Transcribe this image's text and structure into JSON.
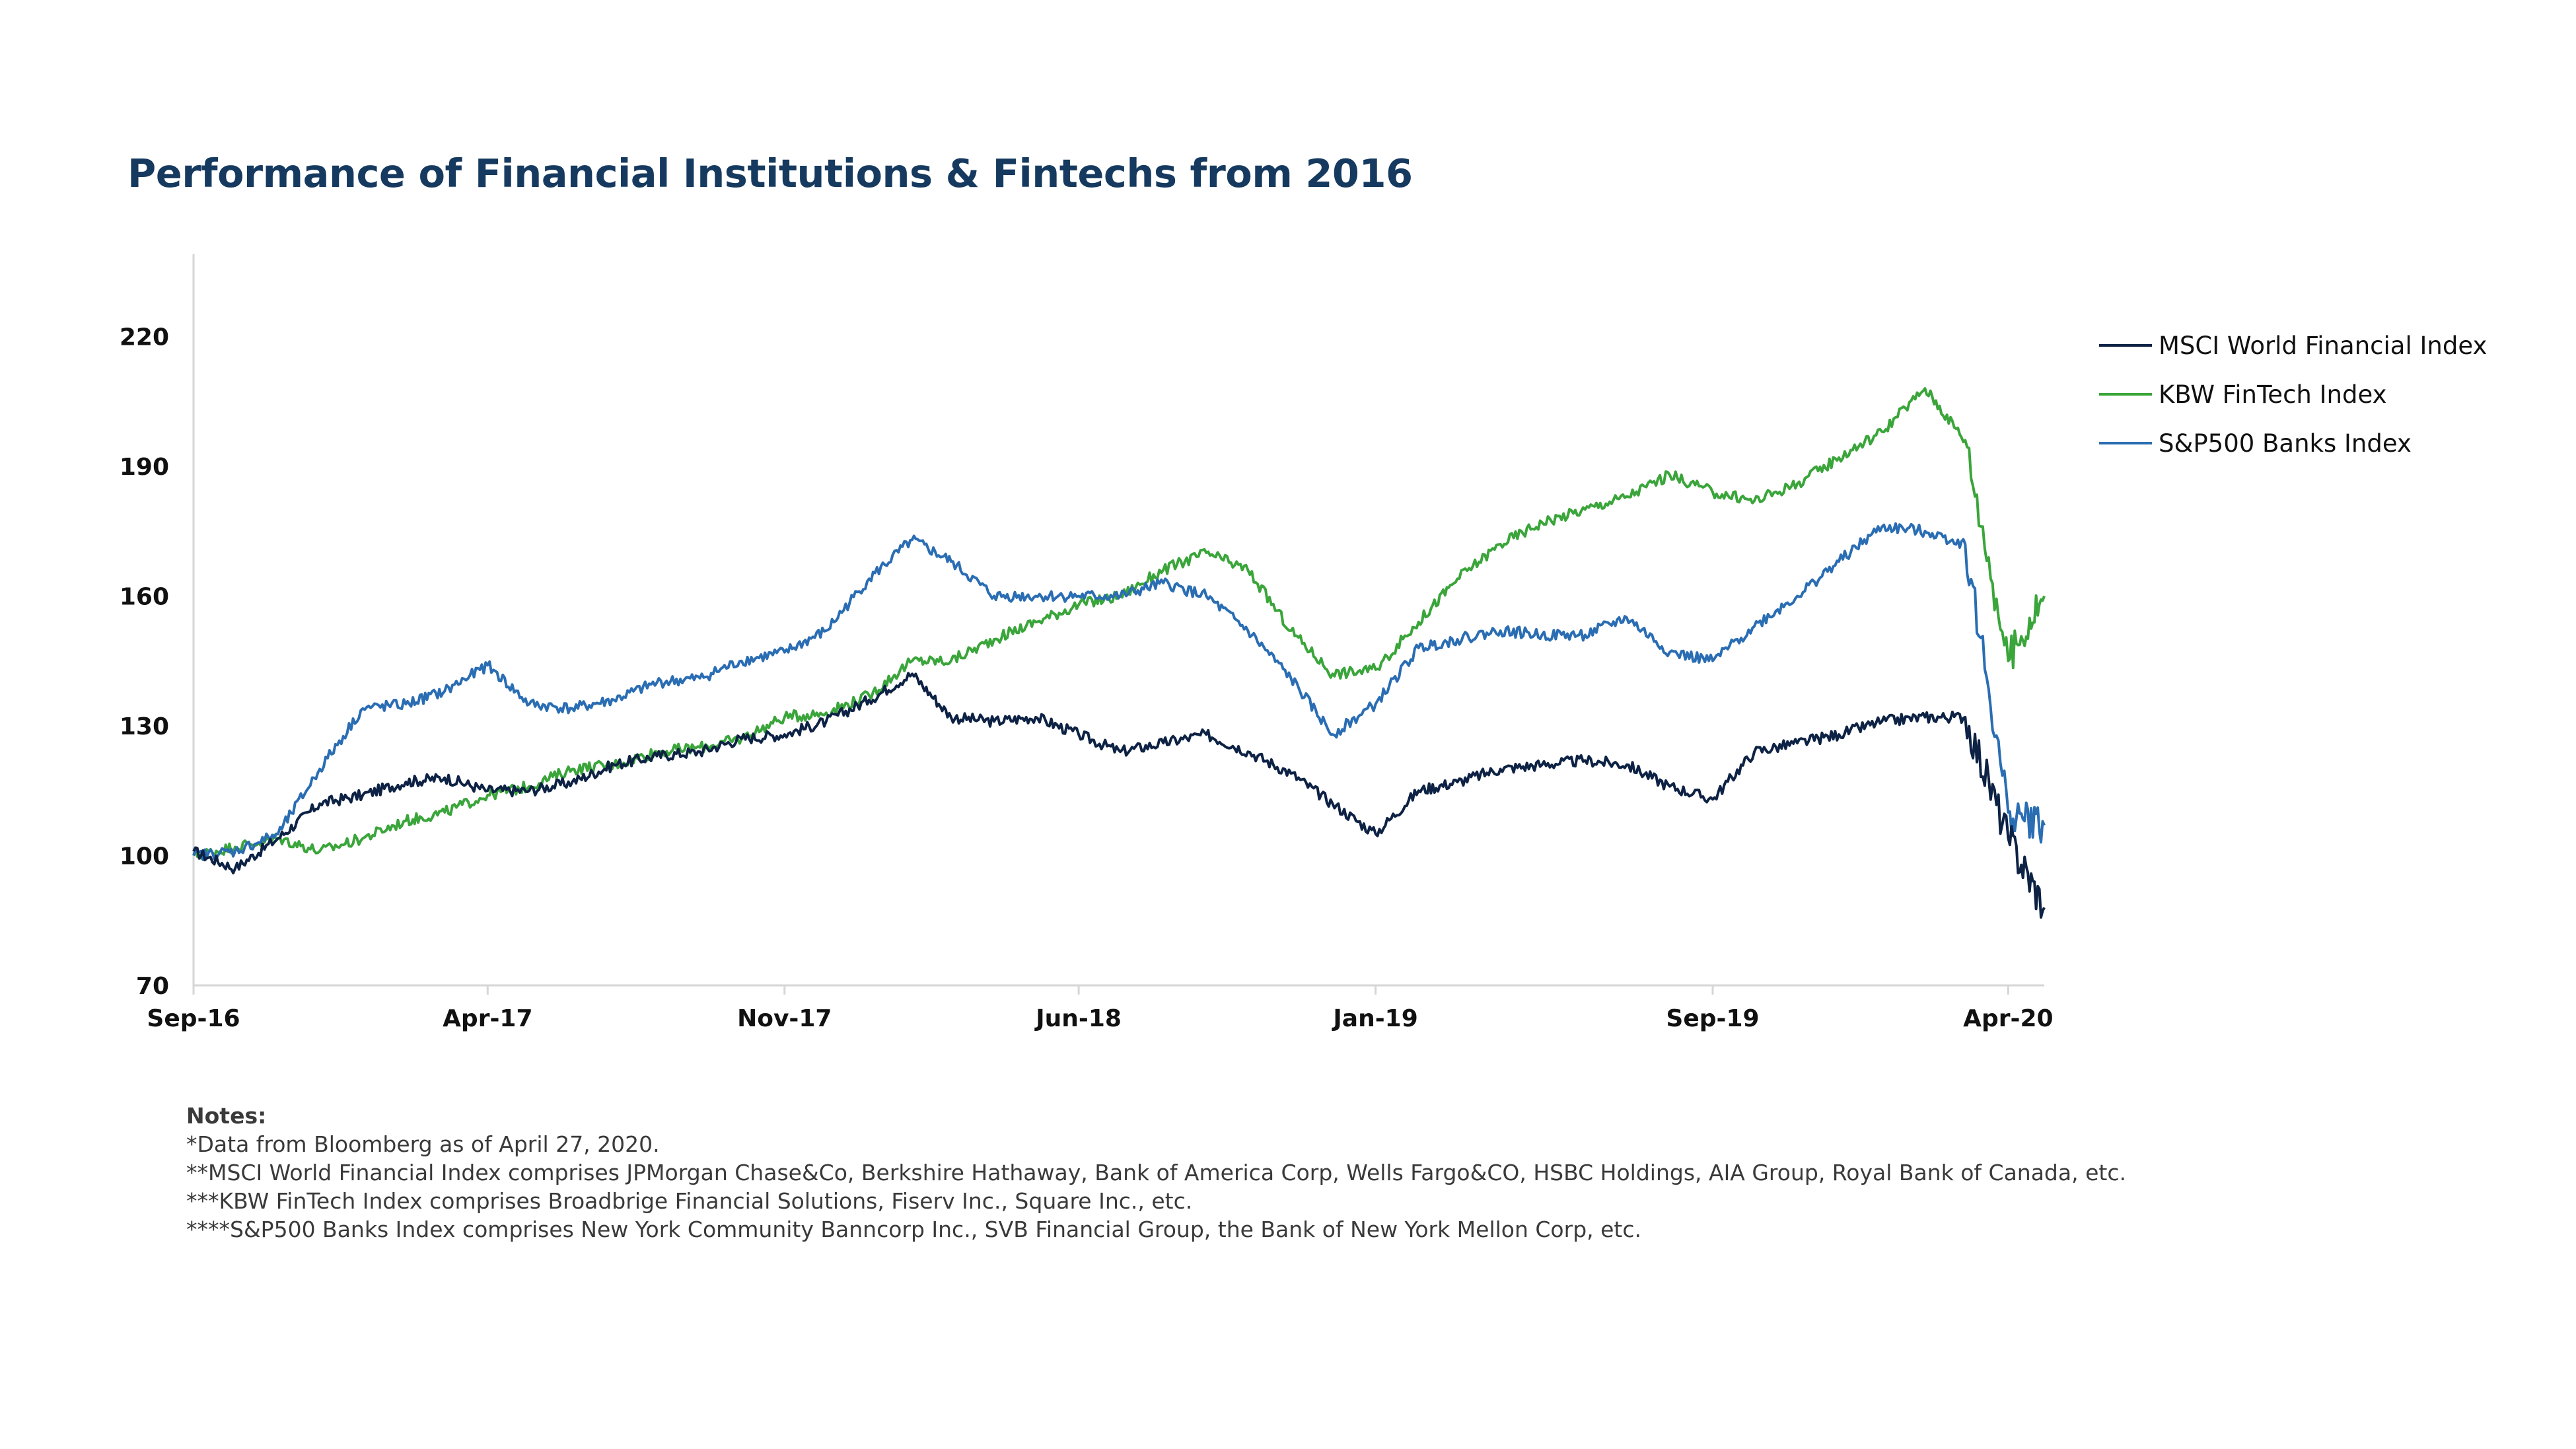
{
  "chart_data": {
    "type": "line",
    "title": "Performance of Financial Institutions & Fintechs from 2016",
    "x_tick_labels": [
      "Sep-16",
      "Apr-17",
      "Nov-17",
      "Jun-18",
      "Jan-19",
      "Sep-19",
      "Apr-20"
    ],
    "x_ticks": [
      "2016-09-01",
      "2017-04-01",
      "2017-11-01",
      "2018-06-01",
      "2019-01-01",
      "2019-09-01",
      "2020-04-01"
    ],
    "xlim": [
      "2016-09-01",
      "2020-04-27"
    ],
    "y_ticks": [
      70,
      100,
      130,
      160,
      190,
      220
    ],
    "ylim": [
      70,
      239
    ],
    "grid": false,
    "legend_position": "right",
    "x": [
      "2016-09-01",
      "2016-10-01",
      "2016-11-01",
      "2016-12-01",
      "2017-01-01",
      "2017-02-01",
      "2017-03-01",
      "2017-04-01",
      "2017-05-01",
      "2017-06-01",
      "2017-07-01",
      "2017-08-01",
      "2017-09-01",
      "2017-10-01",
      "2017-11-01",
      "2017-12-01",
      "2018-01-01",
      "2018-02-01",
      "2018-03-01",
      "2018-04-01",
      "2018-05-01",
      "2018-06-01",
      "2018-07-01",
      "2018-08-01",
      "2018-09-01",
      "2018-10-01",
      "2018-11-01",
      "2018-12-01",
      "2019-01-01",
      "2019-02-01",
      "2019-03-01",
      "2019-04-01",
      "2019-05-01",
      "2019-06-01",
      "2019-07-01",
      "2019-08-01",
      "2019-09-01",
      "2019-10-01",
      "2019-11-01",
      "2019-12-01",
      "2020-01-01",
      "2020-02-01",
      "2020-03-01",
      "2020-04-01",
      "2020-04-27"
    ],
    "series": [
      {
        "name": "MSCI World Financial Index",
        "color": "#0d2244",
        "values": [
          101,
          97,
          104,
          112,
          114,
          117,
          118,
          115,
          115,
          117,
          121,
          123,
          124,
          127,
          128,
          131,
          136,
          142,
          132,
          131,
          132,
          128,
          124,
          126,
          128,
          124,
          119,
          112,
          105,
          115,
          117,
          120,
          121,
          122,
          121,
          116,
          113,
          124,
          126,
          128,
          131,
          132,
          132,
          104,
          88
        ]
      },
      {
        "name": "KBW FinTech Index",
        "color": "#3aa53a",
        "values": [
          100,
          102,
          104,
          101,
          104,
          108,
          110,
          114,
          116,
          120,
          121,
          124,
          125,
          127,
          132,
          133,
          137,
          145,
          145,
          150,
          154,
          158,
          160,
          166,
          170,
          166,
          152,
          142,
          143,
          154,
          164,
          172,
          177,
          180,
          183,
          188,
          184,
          182,
          186,
          192,
          198,
          208,
          196,
          145,
          160
        ]
      },
      {
        "name": "S&P500 Banks Index",
        "color": "#2a6db3",
        "values": [
          100,
          101,
          105,
          120,
          134,
          135,
          138,
          144,
          135,
          134,
          136,
          140,
          141,
          145,
          147,
          152,
          164,
          173,
          168,
          160,
          160,
          160,
          160,
          163,
          160,
          152,
          141,
          128,
          135,
          148,
          150,
          152,
          151,
          151,
          155,
          147,
          145,
          153,
          160,
          168,
          176,
          175,
          172,
          110,
          107
        ]
      }
    ]
  },
  "notes": {
    "heading": "Notes:",
    "lines": [
      "*Data from Bloomberg as of April 27, 2020.",
      "**MSCI World Financial Index comprises JPMorgan Chase&Co, Berkshire Hathaway, Bank of America Corp, Wells Fargo&CO, HSBC Holdings, AIA Group, Royal Bank of Canada, etc.",
      "***KBW FinTech Index comprises Broadbrige Financial Solutions, Fiserv Inc., Square Inc., etc.",
      "****S&P500 Banks Index comprises New York Community Banncorp Inc., SVB Financial Group, the Bank of New York Mellon Corp, etc."
    ]
  }
}
